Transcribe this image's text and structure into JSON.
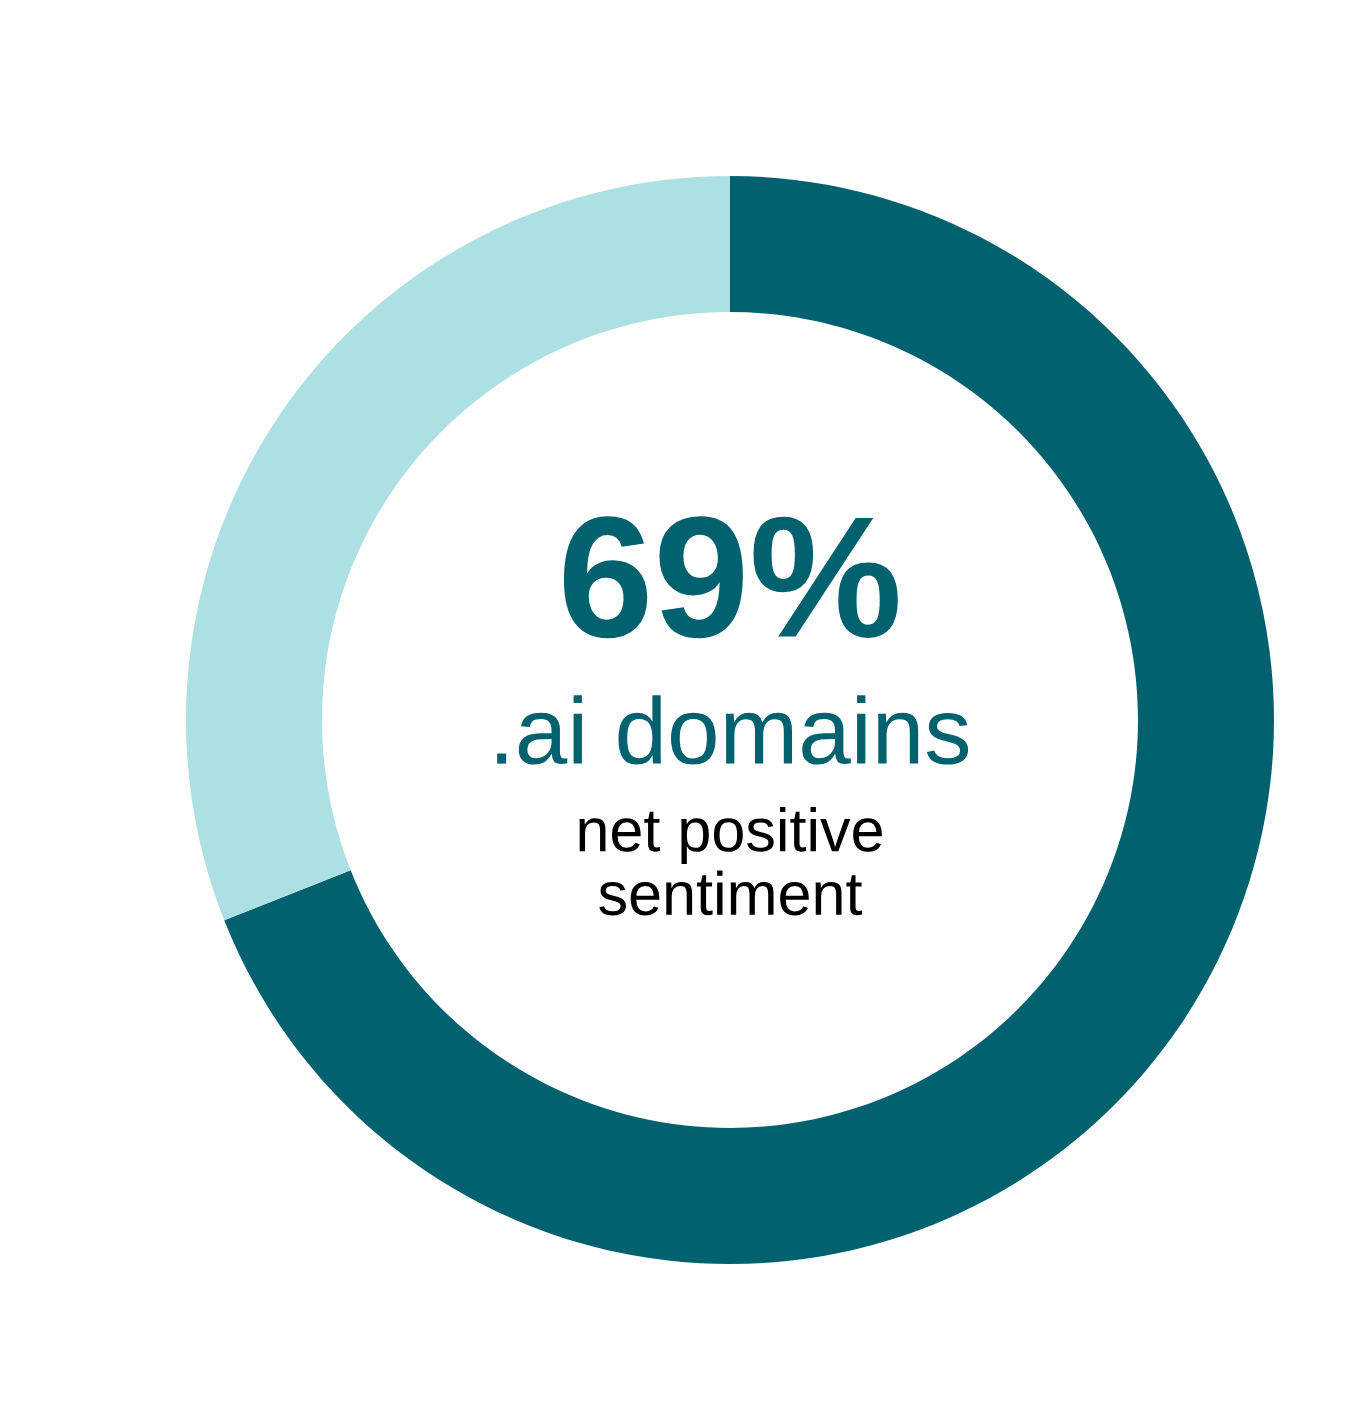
{
  "chart_data": {
    "type": "donut",
    "categories": [
      null,
      null
    ],
    "values": [
      69,
      31
    ],
    "colors": [
      "#02616f",
      "#ade0e2"
    ],
    "value_labels": [
      "69%",
      null
    ],
    "annotations": [
      ".ai domains",
      "net positive\nsentiment"
    ]
  }
}
